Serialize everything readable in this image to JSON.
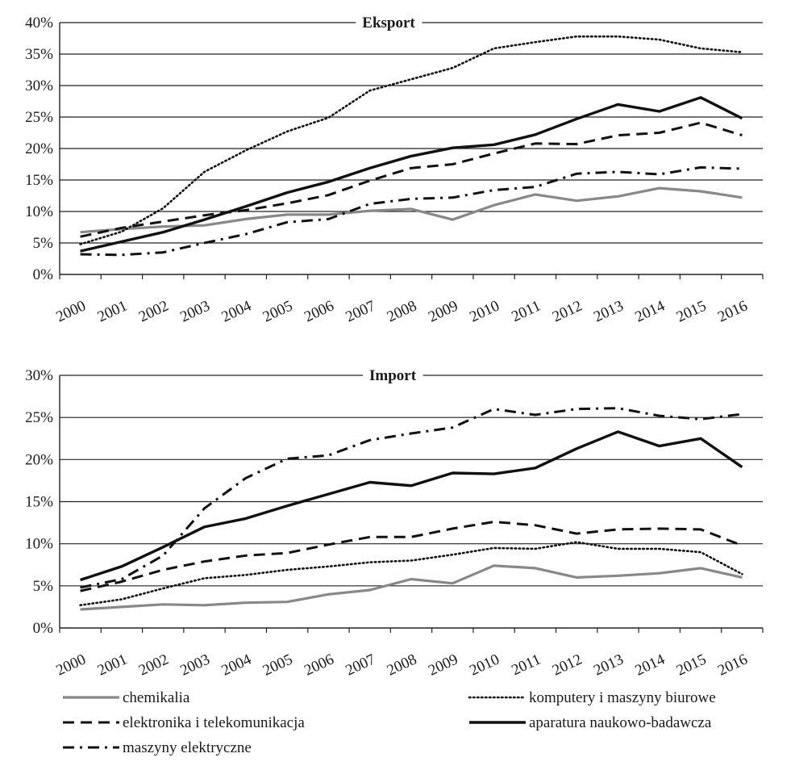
{
  "chart_data": [
    {
      "type": "line",
      "title": "Eksport",
      "ylim": [
        0,
        40
      ],
      "yticks": [
        "0%",
        "5%",
        "10%",
        "15%",
        "20%",
        "25%",
        "30%",
        "35%",
        "40%"
      ],
      "categories": [
        "2000",
        "2001",
        "2002",
        "2003",
        "2004",
        "2005",
        "2006",
        "2007",
        "2008",
        "2009",
        "2010",
        "2011",
        "2012",
        "2013",
        "2014",
        "2015",
        "2016"
      ],
      "grid": true,
      "series": [
        {
          "name": "chemikalia",
          "style": "solid-gray",
          "values": [
            6.7,
            7.2,
            7.6,
            7.8,
            8.8,
            9.5,
            9.5,
            10.1,
            10.4,
            8.7,
            11.0,
            12.7,
            11.7,
            12.4,
            13.7,
            13.2,
            12.2
          ]
        },
        {
          "name": "komputery i maszyny biurowe",
          "style": "dotted",
          "values": [
            4.8,
            6.8,
            10.5,
            16.3,
            19.7,
            22.7,
            24.9,
            29.2,
            31.0,
            32.8,
            35.9,
            36.9,
            37.8,
            37.8,
            37.3,
            35.9,
            35.3
          ]
        },
        {
          "name": "elektronika i telekomunikacja",
          "style": "dashed",
          "values": [
            6.0,
            7.4,
            8.4,
            9.4,
            10.2,
            11.3,
            12.6,
            14.9,
            16.9,
            17.5,
            19.2,
            20.8,
            20.7,
            22.1,
            22.5,
            24.1,
            22.1
          ]
        },
        {
          "name": "aparatura naukowo-badawcza",
          "style": "solid-black",
          "values": [
            3.7,
            5.2,
            6.7,
            8.7,
            10.8,
            13.0,
            14.7,
            16.9,
            18.8,
            20.1,
            20.6,
            22.2,
            24.7,
            27.0,
            25.9,
            28.1,
            24.8
          ]
        },
        {
          "name": "maszyny elektryczne",
          "style": "dashdot",
          "values": [
            3.2,
            3.1,
            3.5,
            5.0,
            6.4,
            8.3,
            8.8,
            11.2,
            12.0,
            12.2,
            13.4,
            13.9,
            16.0,
            16.3,
            15.9,
            17.0,
            16.8
          ]
        }
      ]
    },
    {
      "type": "line",
      "title": "Import",
      "ylim": [
        0,
        30
      ],
      "yticks": [
        "0%",
        "5%",
        "10%",
        "15%",
        "20%",
        "25%",
        "30%"
      ],
      "categories": [
        "2000",
        "2001",
        "2002",
        "2003",
        "2004",
        "2005",
        "2006",
        "2007",
        "2008",
        "2009",
        "2010",
        "2011",
        "2012",
        "2013",
        "2014",
        "2015",
        "2016"
      ],
      "grid": true,
      "series": [
        {
          "name": "chemikalia",
          "style": "solid-gray",
          "values": [
            2.2,
            2.5,
            2.8,
            2.7,
            3.0,
            3.1,
            4.0,
            4.5,
            5.8,
            5.3,
            7.4,
            7.1,
            6.0,
            6.2,
            6.5,
            7.1,
            6.0
          ]
        },
        {
          "name": "komputery i maszyny biurowe",
          "style": "dotted",
          "values": [
            2.7,
            3.4,
            4.7,
            5.9,
            6.3,
            6.9,
            7.3,
            7.8,
            8.0,
            8.7,
            9.5,
            9.4,
            10.2,
            9.4,
            9.4,
            9.0,
            6.4
          ]
        },
        {
          "name": "elektronika i telekomunikacja",
          "style": "dashed",
          "values": [
            4.4,
            5.5,
            6.9,
            7.9,
            8.6,
            8.9,
            9.9,
            10.8,
            10.8,
            11.8,
            12.6,
            12.2,
            11.2,
            11.7,
            11.8,
            11.7,
            9.8
          ]
        },
        {
          "name": "aparatura naukowo-badawcza",
          "style": "solid-black",
          "values": [
            5.7,
            7.3,
            9.6,
            12.0,
            13.0,
            14.5,
            15.9,
            17.3,
            16.9,
            18.4,
            18.3,
            19.0,
            21.3,
            23.3,
            21.6,
            22.5,
            19.1
          ]
        },
        {
          "name": "maszyny elektryczne",
          "style": "dashdot",
          "values": [
            4.8,
            5.8,
            8.6,
            14.2,
            17.8,
            20.1,
            20.5,
            22.3,
            23.1,
            23.8,
            26.0,
            25.3,
            26.0,
            26.1,
            25.2,
            24.8,
            25.4
          ]
        }
      ]
    }
  ],
  "legend": {
    "placement": "bottom",
    "items": [
      {
        "label": "chemikalia",
        "style": "solid-gray"
      },
      {
        "label": "komputery i maszyny biurowe",
        "style": "dotted"
      },
      {
        "label": "elektronika i telekomunikacja",
        "style": "dashed"
      },
      {
        "label": "aparatura naukowo-badawcza",
        "style": "solid-black"
      },
      {
        "label": "maszyny elektryczne",
        "style": "dashdot"
      }
    ]
  },
  "colors": {
    "gray_series": "#888888",
    "black_series": "#111111",
    "grid": "#222222"
  }
}
